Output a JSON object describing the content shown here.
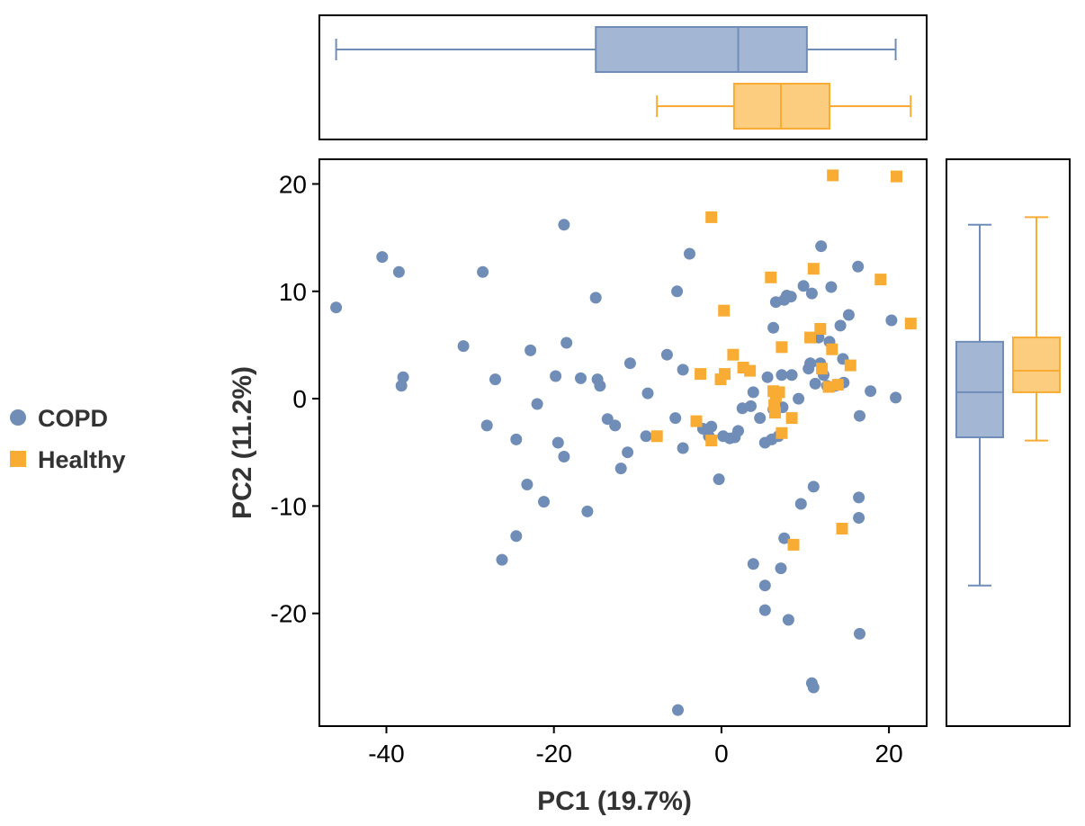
{
  "chart_data": {
    "type": "scatter",
    "xlabel": "PC1 (19.7%)",
    "ylabel": "PC2 (11.2%)",
    "xlim": [
      -48,
      24.5
    ],
    "ylim": [
      -30.5,
      22.3
    ],
    "xticks": [
      -40,
      -20,
      0,
      20
    ],
    "yticks": [
      -20,
      -10,
      0,
      10,
      20
    ],
    "grid": false,
    "legend_position": "left",
    "series": [
      {
        "name": "COPD",
        "color": "#6F8DB7",
        "marker": "circle",
        "points": [
          [
            -46,
            8.5
          ],
          [
            -40.5,
            13.2
          ],
          [
            -38.5,
            11.8
          ],
          [
            -38,
            2
          ],
          [
            -38.2,
            1.2
          ],
          [
            -28.5,
            11.8
          ],
          [
            -30.8,
            4.9
          ],
          [
            -27,
            1.8
          ],
          [
            -28,
            -2.5
          ],
          [
            -24.5,
            -3.8
          ],
          [
            -23.2,
            -8
          ],
          [
            -24.5,
            -12.8
          ],
          [
            -26.2,
            -15
          ],
          [
            -22.8,
            4.5
          ],
          [
            -22,
            -0.5
          ],
          [
            -21.2,
            -9.6
          ],
          [
            -19.8,
            2.1
          ],
          [
            -19.5,
            -4.1
          ],
          [
            -18.8,
            -5.4
          ],
          [
            -18.5,
            5.2
          ],
          [
            -18.8,
            16.2
          ],
          [
            -16.8,
            1.9
          ],
          [
            -16,
            -10.5
          ],
          [
            -15,
            9.4
          ],
          [
            -14.8,
            1.8
          ],
          [
            -14.5,
            1.2
          ],
          [
            -13.6,
            -1.9
          ],
          [
            -12.7,
            -2.5
          ],
          [
            -12,
            -6.5
          ],
          [
            -11.2,
            -5
          ],
          [
            -10.9,
            3.3
          ],
          [
            -9,
            -3.5
          ],
          [
            -8.8,
            0.5
          ],
          [
            -6.5,
            4.1
          ],
          [
            -5.5,
            -1.8
          ],
          [
            -5.3,
            10
          ],
          [
            -4.6,
            2.7
          ],
          [
            -4.6,
            -4.6
          ],
          [
            -3.8,
            13.5
          ],
          [
            -2.2,
            -2.8
          ],
          [
            -1.5,
            -3.5
          ],
          [
            -1.2,
            -2.6
          ],
          [
            -0.3,
            -7.5
          ],
          [
            0.2,
            -3.5
          ],
          [
            1,
            -3.7
          ],
          [
            1.6,
            -3.6
          ],
          [
            2,
            -3
          ],
          [
            2.5,
            -0.9
          ],
          [
            3.5,
            -0.7
          ],
          [
            3.8,
            0.6
          ],
          [
            4.6,
            -1.8
          ],
          [
            5.2,
            -4.1
          ],
          [
            5.5,
            2
          ],
          [
            6,
            -3.8
          ],
          [
            6.2,
            6.6
          ],
          [
            6.5,
            9
          ],
          [
            6.8,
            -3.5
          ],
          [
            7.2,
            2.2
          ],
          [
            7.5,
            9.2
          ],
          [
            7.8,
            9.6
          ],
          [
            8.3,
            9.5
          ],
          [
            8.4,
            2.2
          ],
          [
            9.2,
            0
          ],
          [
            9.5,
            -9.8
          ],
          [
            9.8,
            10.5
          ],
          [
            10.4,
            2.8
          ],
          [
            10.6,
            3.3
          ],
          [
            10.8,
            9.8
          ],
          [
            11.2,
            1.4
          ],
          [
            11.6,
            5.7
          ],
          [
            11.9,
            14.2
          ],
          [
            11.8,
            3.3
          ],
          [
            12.2,
            2.2
          ],
          [
            12.6,
            1.2
          ],
          [
            12.9,
            5.3
          ],
          [
            13.1,
            10.4
          ],
          [
            13.6,
            1.2
          ],
          [
            14.2,
            6.8
          ],
          [
            14.5,
            3.7
          ],
          [
            14.6,
            1.5
          ],
          [
            15.2,
            7.8
          ],
          [
            16.3,
            12.3
          ],
          [
            16.4,
            -9.2
          ],
          [
            16.4,
            -11.1
          ],
          [
            16.5,
            -1.6
          ],
          [
            17.8,
            0.7
          ],
          [
            20.3,
            7.3
          ],
          [
            20.8,
            0.1
          ],
          [
            11,
            -8.2
          ],
          [
            3.8,
            -15.4
          ],
          [
            5.2,
            -17.4
          ],
          [
            5.2,
            -19.7
          ],
          [
            7.1,
            -15.8
          ],
          [
            7.5,
            -13
          ],
          [
            8,
            -20.6
          ],
          [
            6.2,
            -1
          ],
          [
            7.3,
            -0.8
          ],
          [
            10.8,
            -26.5
          ],
          [
            11,
            -26.9
          ],
          [
            16.5,
            -21.9
          ],
          [
            -5.2,
            -29
          ]
        ]
      },
      {
        "name": "Healthy",
        "color": "#F8AC34",
        "marker": "square",
        "points": [
          [
            -1.2,
            16.9
          ],
          [
            13.3,
            20.8
          ],
          [
            20.9,
            20.7
          ],
          [
            5.9,
            11.3
          ],
          [
            11,
            12.1
          ],
          [
            19,
            11.1
          ],
          [
            22.6,
            7
          ],
          [
            0.3,
            8.2
          ],
          [
            11.8,
            6.5
          ],
          [
            10.6,
            5.7
          ],
          [
            7.2,
            4.8
          ],
          [
            13.2,
            4.6
          ],
          [
            1.4,
            4.1
          ],
          [
            2.6,
            2.9
          ],
          [
            3.4,
            2.6
          ],
          [
            12,
            2.8
          ],
          [
            15.4,
            3.1
          ],
          [
            -2.5,
            2.3
          ],
          [
            0.4,
            2.3
          ],
          [
            -0.1,
            1.8
          ],
          [
            12.8,
            1.1
          ],
          [
            13.9,
            1.3
          ],
          [
            6.2,
            0.7
          ],
          [
            6.9,
            0.6
          ],
          [
            6.3,
            -0.6
          ],
          [
            6.4,
            -1.3
          ],
          [
            8.4,
            -1.8
          ],
          [
            -3,
            -2.1
          ],
          [
            -7.7,
            -3.5
          ],
          [
            -1.2,
            -3.9
          ],
          [
            7.2,
            -3.2
          ],
          [
            14.4,
            -12.1
          ],
          [
            8.6,
            -13.6
          ],
          [
            6.5,
            0.2
          ]
        ]
      }
    ],
    "top_boxplot": {
      "series": [
        {
          "name": "COPD",
          "whisker_low": -46,
          "q1": -15,
          "median": 2,
          "q3": 10.2,
          "whisker_high": 20.8
        },
        {
          "name": "Healthy",
          "whisker_low": -7.7,
          "q1": 1.5,
          "median": 7.1,
          "q3": 12.9,
          "whisker_high": 22.6
        }
      ]
    },
    "right_boxplot": {
      "series": [
        {
          "name": "COPD",
          "whisker_low": -17.4,
          "q1": -3.6,
          "median": 0.6,
          "q3": 5.3,
          "whisker_high": 16.2
        },
        {
          "name": "Healthy",
          "whisker_low": -3.9,
          "q1": 0.6,
          "median": 2.6,
          "q3": 5.7,
          "whisker_high": 16.9
        }
      ]
    }
  }
}
